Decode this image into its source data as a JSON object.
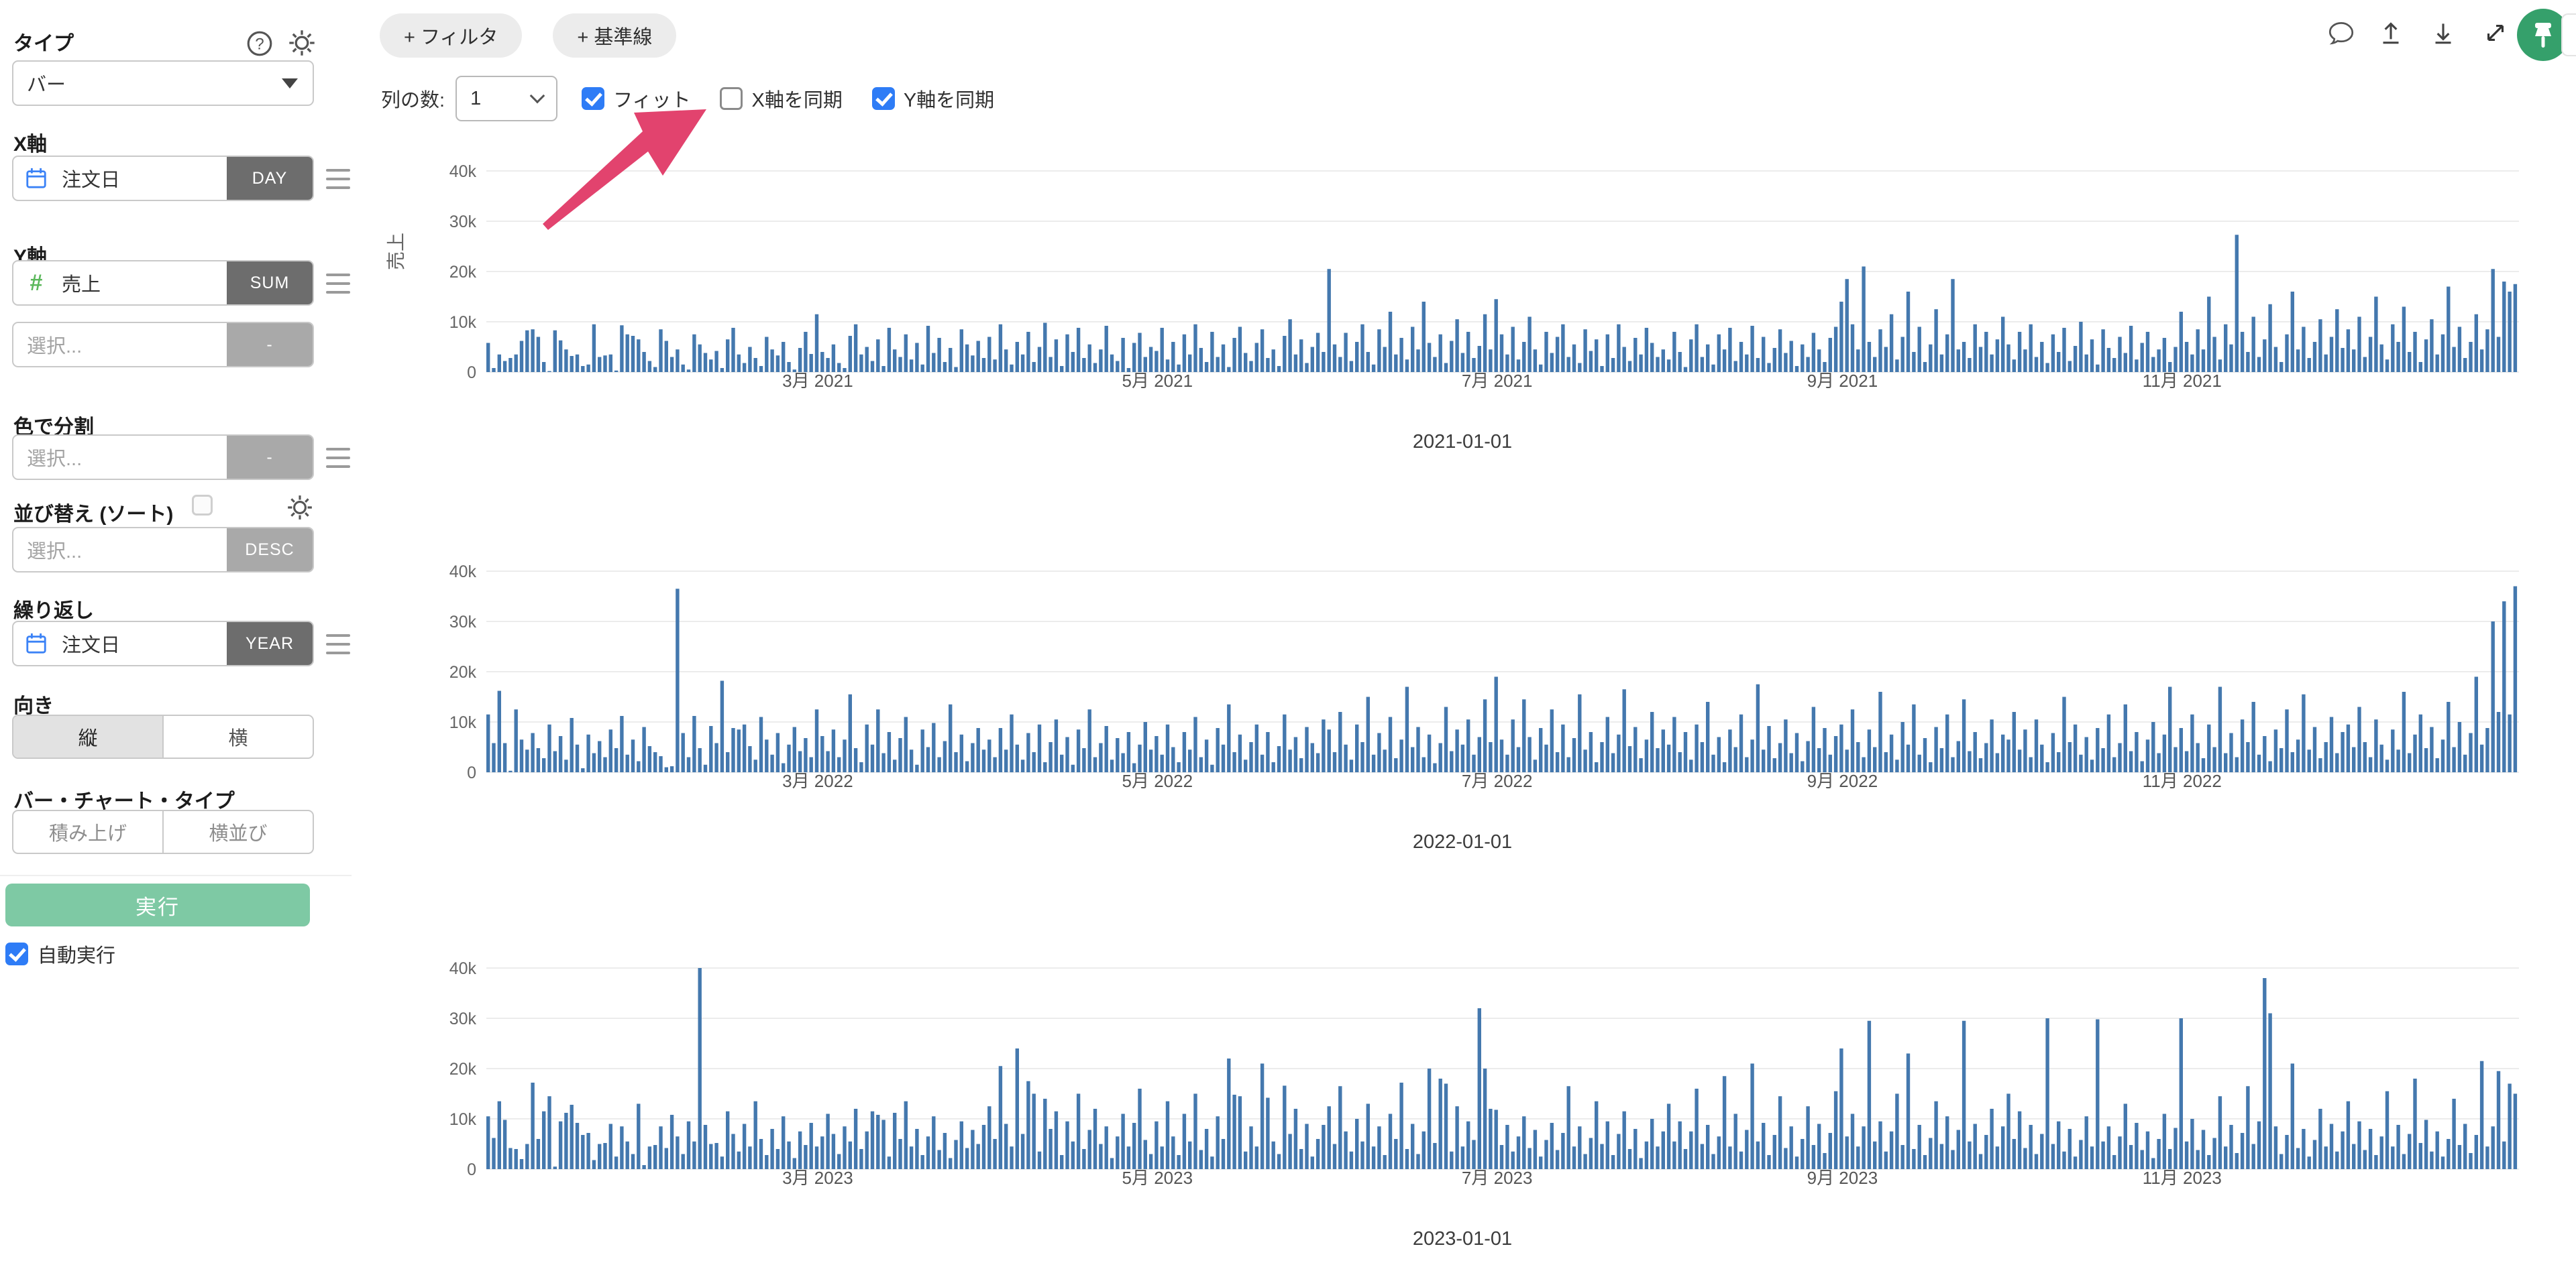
{
  "sidebar": {
    "type_label": "タイプ",
    "type_value": "バー",
    "x_axis": {
      "label": "X軸",
      "field": "注文日",
      "agg": "DAY"
    },
    "y_axis": {
      "label": "Y軸",
      "field": "売上",
      "agg": "SUM",
      "extra_placeholder": "選択...",
      "extra_agg": "-"
    },
    "color": {
      "label": "色で分割",
      "placeholder": "選択...",
      "agg": "-"
    },
    "sort": {
      "label": "並び替え (ソート)",
      "placeholder": "選択...",
      "agg": "DESC",
      "checked": false
    },
    "repeat": {
      "label": "繰り返し",
      "field": "注文日",
      "agg": "YEAR"
    },
    "orientation": {
      "label": "向き",
      "options": [
        "縦",
        "横"
      ],
      "selected": "縦"
    },
    "bar_type": {
      "label": "バー・チャート・タイプ",
      "options": [
        "積み上げ",
        "横並び"
      ],
      "selected": ""
    },
    "run_button": "実行",
    "auto_run": {
      "label": "自動実行",
      "checked": true
    }
  },
  "toolbar": {
    "filter_button": "+ フィルタ",
    "baseline_button": "+ 基準線",
    "columns_label": "列の数:",
    "columns_value": "1",
    "fit": {
      "label": "フィット",
      "checked": true
    },
    "sync_x": {
      "label": "X軸を同期",
      "checked": false
    },
    "sync_y": {
      "label": "Y軸を同期",
      "checked": true
    }
  },
  "header_icons": [
    "comment",
    "upload",
    "download",
    "expand",
    "pin"
  ],
  "colors": {
    "bar": "#4478ae",
    "gridline": "#ececec",
    "arrow": "#e2436e",
    "checkbox_blue": "#2e7cf6",
    "badge_dark": "#6d6d6d",
    "badge_light": "#a9a9a9",
    "run_green": "#7ec9a4",
    "pin_green": "#35a06b",
    "calendar_blue": "#3b82f6",
    "hash_green": "#5cb85c"
  },
  "chart_data": [
    {
      "type": "bar",
      "title": "2021-01-01",
      "ylabel": "売上",
      "y_ticks": [
        "0",
        "10k",
        "20k",
        "30k",
        "40k"
      ],
      "ylim": [
        0,
        40000
      ],
      "values_unit": 100,
      "x_ticks": [
        {
          "day": 59,
          "label": "3月 2021"
        },
        {
          "day": 120,
          "label": "5月 2021"
        },
        {
          "day": 181,
          "label": "7月 2021"
        },
        {
          "day": 243,
          "label": "9月 2021"
        },
        {
          "day": 304,
          "label": "11月 2021"
        }
      ],
      "months": [
        [
          58,
          8,
          35,
          22,
          28,
          35,
          62,
          83,
          85,
          70,
          20,
          2,
          83,
          63,
          45,
          32,
          35,
          12,
          15,
          95,
          30,
          33,
          35,
          3,
          93,
          75,
          72,
          65,
          40,
          22,
          10
        ],
        [
          85,
          62,
          30,
          45,
          15,
          5,
          75,
          55,
          38,
          25,
          42,
          8,
          65,
          88,
          35,
          18,
          50,
          28,
          12,
          70,
          45,
          33,
          60,
          20,
          5,
          48,
          80,
          36
        ],
        [
          115,
          40,
          28,
          55,
          18,
          8,
          72,
          95,
          35,
          50,
          22,
          65,
          12,
          88,
          45,
          30,
          75,
          25,
          58,
          15,
          92,
          38,
          68,
          20,
          48,
          10,
          85,
          55,
          33,
          62,
          28
        ],
        [
          70,
          25,
          95,
          45,
          15,
          60,
          35,
          80,
          20,
          50,
          98,
          30,
          65,
          12,
          75,
          40,
          88,
          28,
          55,
          18,
          45,
          92,
          35,
          22,
          68,
          8,
          58,
          78,
          30,
          50
        ],
        [
          42,
          88,
          25,
          60,
          15,
          75,
          35,
          95,
          48,
          20,
          80,
          30,
          55,
          10,
          68,
          90,
          38,
          22,
          58,
          85,
          28,
          45,
          12,
          72,
          105,
          35,
          65,
          18,
          50,
          78,
          40
        ],
        [
          205,
          55,
          30,
          78,
          22,
          60,
          95,
          40,
          15,
          85,
          50,
          120,
          35,
          68,
          25,
          90,
          45,
          140,
          58,
          30,
          75,
          18,
          62,
          105,
          38,
          80,
          28,
          52,
          115,
          45
        ],
        [
          145,
          75,
          35,
          90,
          25,
          60,
          110,
          45,
          15,
          80,
          38,
          70,
          95,
          30,
          55,
          18,
          85,
          42,
          65,
          12,
          75,
          28,
          95,
          50,
          22,
          68,
          35,
          88,
          58,
          30,
          45
        ],
        [
          25,
          80,
          40,
          10,
          65,
          95,
          30,
          55,
          15,
          75,
          45,
          88,
          22,
          60,
          35,
          92,
          28,
          70,
          18,
          48,
          85,
          38,
          62,
          12,
          55,
          30,
          78,
          45,
          20,
          68,
          90
        ],
        [
          140,
          185,
          95,
          45,
          210,
          60,
          30,
          85,
          50,
          115,
          25,
          70,
          160,
          40,
          90,
          20,
          55,
          125,
          35,
          75,
          185,
          45,
          60,
          28,
          95,
          50,
          80,
          35,
          65,
          110
        ],
        [
          55,
          25,
          80,
          45,
          95,
          30,
          60,
          18,
          75,
          40,
          88,
          22,
          52,
          100,
          35,
          65,
          15,
          85,
          48,
          28,
          70,
          38,
          92,
          25,
          58,
          80,
          30,
          45,
          68,
          20,
          50
        ],
        [
          120,
          60,
          35,
          85,
          45,
          150,
          70,
          25,
          95,
          55,
          273,
          80,
          40,
          110,
          30,
          65,
          135,
          50,
          20,
          75,
          160,
          45,
          90,
          28,
          60,
          105,
          35,
          70,
          125,
          48
        ],
        [
          85,
          45,
          110,
          30,
          70,
          150,
          55,
          25,
          95,
          60,
          130,
          40,
          80,
          20,
          65,
          105,
          35,
          75,
          170,
          50,
          90,
          28,
          60,
          115,
          45,
          85,
          205,
          70,
          180,
          160,
          175
        ]
      ]
    },
    {
      "type": "bar",
      "title": "2022-01-01",
      "ylabel": "",
      "y_ticks": [
        "0",
        "10k",
        "20k",
        "30k",
        "40k"
      ],
      "ylim": [
        0,
        40000
      ],
      "values_unit": 100,
      "x_ticks": [
        {
          "day": 59,
          "label": "3月 2022"
        },
        {
          "day": 120,
          "label": "5月 2022"
        },
        {
          "day": 181,
          "label": "7月 2022"
        },
        {
          "day": 243,
          "label": "9月 2022"
        },
        {
          "day": 304,
          "label": "11月 2022"
        }
      ],
      "months": [
        [
          115,
          58,
          162,
          58,
          3,
          125,
          65,
          45,
          78,
          48,
          28,
          95,
          42,
          72,
          25,
          108,
          55,
          8,
          75,
          38,
          62,
          30,
          85,
          48,
          112,
          35,
          65,
          22,
          90,
          52,
          40
        ],
        [
          32,
          10,
          12,
          365,
          78,
          30,
          112,
          48,
          15,
          92,
          58,
          182,
          40,
          88,
          85,
          95,
          52,
          25,
          110,
          65,
          35,
          78,
          18,
          55,
          90,
          42,
          68,
          30
        ],
        [
          125,
          72,
          42,
          85,
          30,
          65,
          155,
          48,
          20,
          95,
          55,
          125,
          38,
          80,
          25,
          68,
          110,
          45,
          15,
          85,
          50,
          98,
          30,
          62,
          135,
          40,
          75,
          22,
          58,
          88,
          45
        ],
        [
          65,
          30,
          88,
          45,
          115,
          55,
          25,
          78,
          40,
          95,
          20,
          60,
          105,
          35,
          70,
          15,
          85,
          48,
          125,
          30,
          58,
          92,
          25,
          68,
          38,
          80,
          18,
          55,
          100,
          45
        ],
        [
          72,
          35,
          95,
          50,
          20,
          80,
          45,
          110,
          30,
          65,
          15,
          88,
          55,
          135,
          40,
          75,
          25,
          60,
          95,
          35,
          80,
          20,
          52,
          115,
          45,
          70,
          28,
          90,
          58,
          38,
          105
        ],
        [
          85,
          40,
          120,
          55,
          25,
          95,
          60,
          150,
          35,
          78,
          45,
          110,
          28,
          65,
          170,
          50,
          90,
          30,
          75,
          18,
          58,
          130,
          42,
          85,
          55,
          105,
          35,
          70,
          145,
          60
        ],
        [
          190,
          65,
          35,
          105,
          50,
          145,
          70,
          25,
          88,
          55,
          125,
          40,
          95,
          30,
          68,
          155,
          45,
          80,
          20,
          60,
          110,
          38,
          75,
          165,
          52,
          90,
          28,
          65,
          120,
          48,
          85
        ],
        [
          55,
          110,
          40,
          80,
          25,
          95,
          60,
          140,
          35,
          70,
          20,
          85,
          50,
          115,
          30,
          65,
          175,
          45,
          92,
          28,
          58,
          105,
          38,
          78,
          22,
          62,
          130,
          48,
          88,
          35,
          72
        ],
        [
          95,
          45,
          125,
          60,
          30,
          85,
          50,
          160,
          40,
          75,
          25,
          100,
          55,
          135,
          35,
          68,
          20,
          90,
          48,
          115,
          30,
          62,
          145,
          42,
          80,
          28,
          58,
          105,
          38,
          75
        ],
        [
          65,
          120,
          45,
          85,
          30,
          105,
          55,
          20,
          78,
          40,
          150,
          60,
          95,
          35,
          70,
          25,
          88,
          48,
          115,
          30,
          58,
          135,
          42,
          80,
          22,
          65,
          100,
          38,
          75,
          170,
          50
        ],
        [
          88,
          42,
          115,
          58,
          28,
          95,
          50,
          170,
          38,
          78,
          30,
          105,
          60,
          140,
          35,
          72,
          22,
          85,
          48,
          125,
          40,
          65,
          155,
          45,
          90,
          28,
          60,
          110,
          38,
          80
        ],
        [
          95,
          50,
          130,
          60,
          30,
          105,
          55,
          25,
          85,
          45,
          160,
          38,
          75,
          115,
          48,
          90,
          28,
          65,
          140,
          50,
          100,
          35,
          78,
          190,
          55,
          88,
          300,
          120,
          340,
          115,
          370
        ]
      ]
    },
    {
      "type": "bar",
      "title": "2023-01-01",
      "ylabel": "",
      "y_ticks": [
        "0",
        "10k",
        "20k",
        "30k",
        "40k"
      ],
      "ylim": [
        0,
        40000
      ],
      "values_unit": 100,
      "x_ticks": [
        {
          "day": 59,
          "label": "3月 2023"
        },
        {
          "day": 120,
          "label": "5月 2023"
        },
        {
          "day": 181,
          "label": "7月 2023"
        },
        {
          "day": 243,
          "label": "9月 2023"
        },
        {
          "day": 304,
          "label": "11月 2023"
        }
      ],
      "months": [
        [
          105,
          62,
          135,
          98,
          42,
          40,
          20,
          50,
          172,
          60,
          115,
          145,
          5,
          95,
          112,
          128,
          92,
          68,
          72,
          18,
          50,
          52,
          90,
          25,
          85,
          55,
          30,
          130,
          8,
          45,
          48
        ],
        [
          85,
          42,
          108,
          65,
          30,
          95,
          55,
          400,
          88,
          50,
          52,
          25,
          115,
          70,
          35,
          90,
          45,
          135,
          60,
          28,
          80,
          40,
          105,
          55,
          22,
          75,
          48,
          92
        ],
        [
          45,
          65,
          110,
          70,
          30,
          85,
          55,
          120,
          40,
          75,
          115,
          108,
          98,
          25,
          112,
          60,
          135,
          45,
          80,
          28,
          65,
          105,
          38,
          72,
          22,
          58,
          95,
          42,
          78,
          50,
          88
        ],
        [
          125,
          60,
          205,
          90,
          45,
          240,
          70,
          175,
          150,
          35,
          140,
          80,
          115,
          28,
          95,
          55,
          150,
          40,
          78,
          120,
          50,
          85,
          22,
          65,
          110,
          45,
          92,
          160,
          58,
          30
        ],
        [
          95,
          45,
          135,
          65,
          28,
          110,
          55,
          150,
          38,
          80,
          25,
          105,
          60,
          220,
          148,
          145,
          35,
          85,
          45,
          210,
          142,
          55,
          30,
          166,
          70,
          120,
          40,
          90,
          25,
          60,
          88
        ],
        [
          125,
          50,
          165,
          75,
          35,
          100,
          55,
          130,
          45,
          85,
          28,
          110,
          60,
          172,
          40,
          90,
          30,
          75,
          200,
          52,
          180,
          170,
          35,
          125,
          45,
          95,
          58,
          320,
          200,
          120
        ],
        [
          118,
          48,
          88,
          35,
          65,
          105,
          42,
          78,
          25,
          58,
          92,
          38,
          72,
          165,
          45,
          85,
          30,
          62,
          135,
          50,
          95,
          28,
          70,
          115,
          40,
          80,
          22,
          55,
          100,
          45,
          75
        ],
        [
          130,
          55,
          95,
          40,
          75,
          160,
          50,
          88,
          30,
          65,
          185,
          45,
          110,
          35,
          78,
          210,
          55,
          92,
          28,
          68,
          145,
          42,
          85,
          25,
          60,
          125,
          48,
          90,
          32,
          72,
          155
        ],
        [
          240,
          65,
          110,
          45,
          85,
          295,
          55,
          95,
          35,
          75,
          150,
          48,
          230,
          40,
          88,
          28,
          62,
          135,
          50,
          105,
          38,
          78,
          295,
          55,
          90,
          30,
          68,
          120,
          45,
          85
        ],
        [
          150,
          60,
          115,
          42,
          88,
          30,
          70,
          300,
          50,
          95,
          35,
          80,
          25,
          58,
          105,
          45,
          298,
          55,
          85,
          28,
          65,
          130,
          48,
          92,
          38,
          75,
          22,
          60,
          110,
          40,
          82
        ],
        [
          300,
          55,
          100,
          38,
          78,
          28,
          62,
          145,
          45,
          88,
          32,
          72,
          165,
          50,
          95,
          380,
          310,
          85,
          30,
          68,
          210,
          42,
          80,
          25,
          58,
          120,
          45,
          90,
          35,
          75
        ],
        [
          135,
          50,
          95,
          38,
          80,
          28,
          65,
          155,
          45,
          88,
          30,
          70,
          180,
          52,
          98,
          35,
          75,
          25,
          60,
          140,
          48,
          90,
          32,
          68,
          215,
          45,
          85,
          195,
          55,
          170,
          150
        ]
      ]
    }
  ]
}
